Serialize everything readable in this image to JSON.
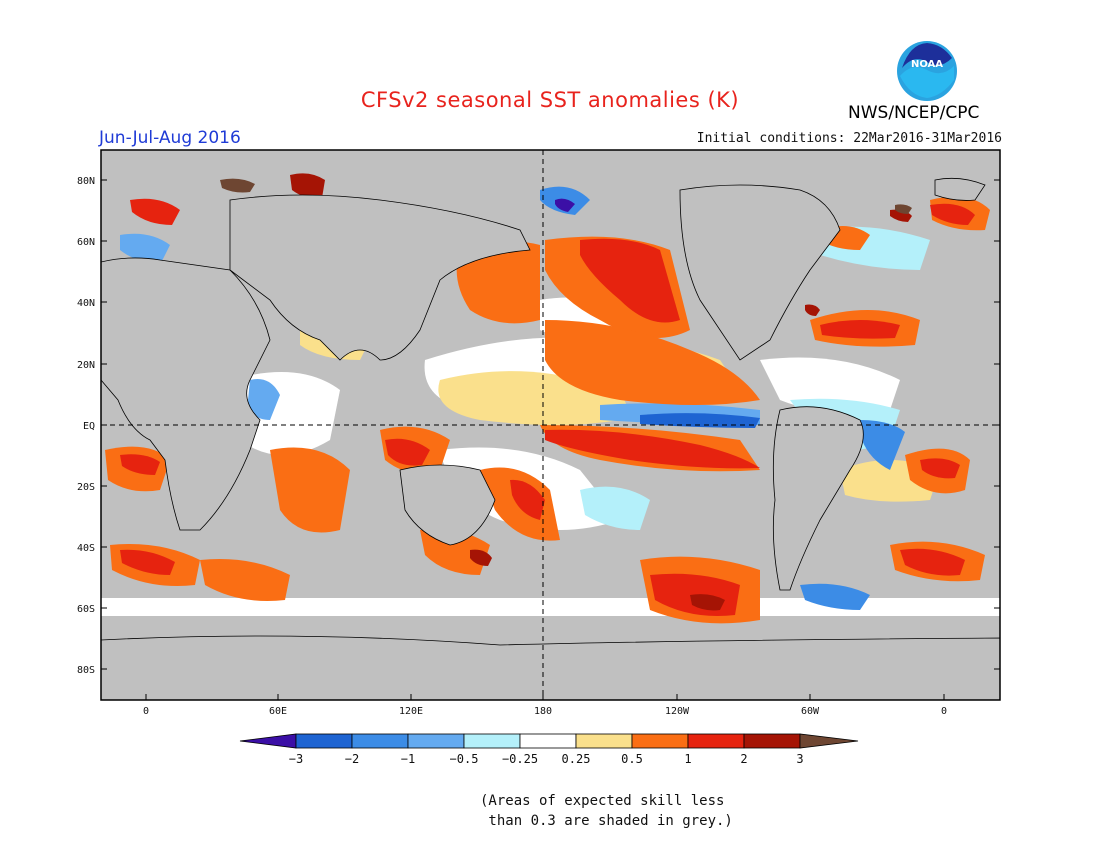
{
  "title": "CFSv2 seasonal SST anomalies (K)",
  "period": "Jun-Jul-Aug 2016",
  "initial_conditions": "Initial conditions: 22Mar2016-31Mar2016",
  "agency": "NWS/NCEP/CPC",
  "logo": {
    "text": "NOAA",
    "icon": "noaa-logo-icon"
  },
  "map": {
    "projection": "equirectangular",
    "ocean_mask_color": "#c0c0c0",
    "lat_labels": [
      "80N",
      "60N",
      "40N",
      "20N",
      "EQ",
      "20S",
      "40S",
      "60S",
      "80S"
    ],
    "lon_labels": [
      "0",
      "60E",
      "120E",
      "180",
      "120W",
      "60W",
      "0"
    ]
  },
  "colorbar": {
    "ticks": [
      "−3",
      "−2",
      "−1",
      "−0.5",
      "−0.25",
      "0.25",
      "0.5",
      "1",
      "2",
      "3"
    ],
    "colors": [
      "#3b0fa6",
      "#1e64d2",
      "#3c8ce6",
      "#64aaf0",
      "#b4f0fa",
      "#ffffff",
      "#fae08c",
      "#fa6e14",
      "#e6230f",
      "#a51405",
      "#6e4632"
    ]
  },
  "note_lines": [
    "(Areas of expected skill less",
    " than 0.3 are shaded in grey.)"
  ]
}
